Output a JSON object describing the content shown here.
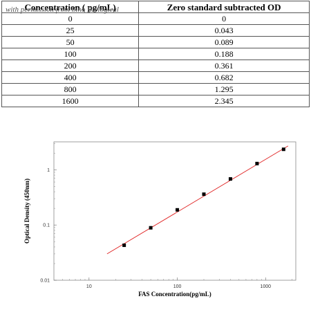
{
  "table": {
    "headers": [
      "Concentration ( pg/mL)",
      "Zero standard subtracted OD"
    ],
    "rows": [
      [
        "0",
        "0"
      ],
      [
        "25",
        "0.043"
      ],
      [
        "50",
        "0.089"
      ],
      [
        "100",
        "0.188"
      ],
      [
        "200",
        "0.361"
      ],
      [
        "400",
        "0.682"
      ],
      [
        "800",
        "1.295"
      ],
      [
        "1600",
        "2.345"
      ]
    ]
  },
  "watermark": "with permission from Sino Biological",
  "chart_data": {
    "type": "scatter",
    "xscale": "log",
    "yscale": "log",
    "x": [
      25,
      50,
      100,
      200,
      400,
      800,
      1600
    ],
    "y": [
      0.043,
      0.089,
      0.188,
      0.361,
      0.682,
      1.295,
      2.345
    ],
    "xlim": [
      4,
      2200
    ],
    "ylim": [
      0.01,
      3.2
    ],
    "x_ticks": [
      "10",
      "100",
      "1000"
    ],
    "x_tick_values": [
      10,
      100,
      1000
    ],
    "y_ticks": [
      "0.01",
      "0.1",
      "1"
    ],
    "y_tick_values": [
      0.01,
      0.1,
      1
    ],
    "xlabel": "FAS  Concentration(pg/mL)",
    "ylabel": "Optical Density (450nm)",
    "fit_line": {
      "x": [
        16,
        1800
      ],
      "y": [
        0.03,
        2.7
      ],
      "color": "#e02020"
    },
    "marker_color": "#000000",
    "grid": false
  }
}
